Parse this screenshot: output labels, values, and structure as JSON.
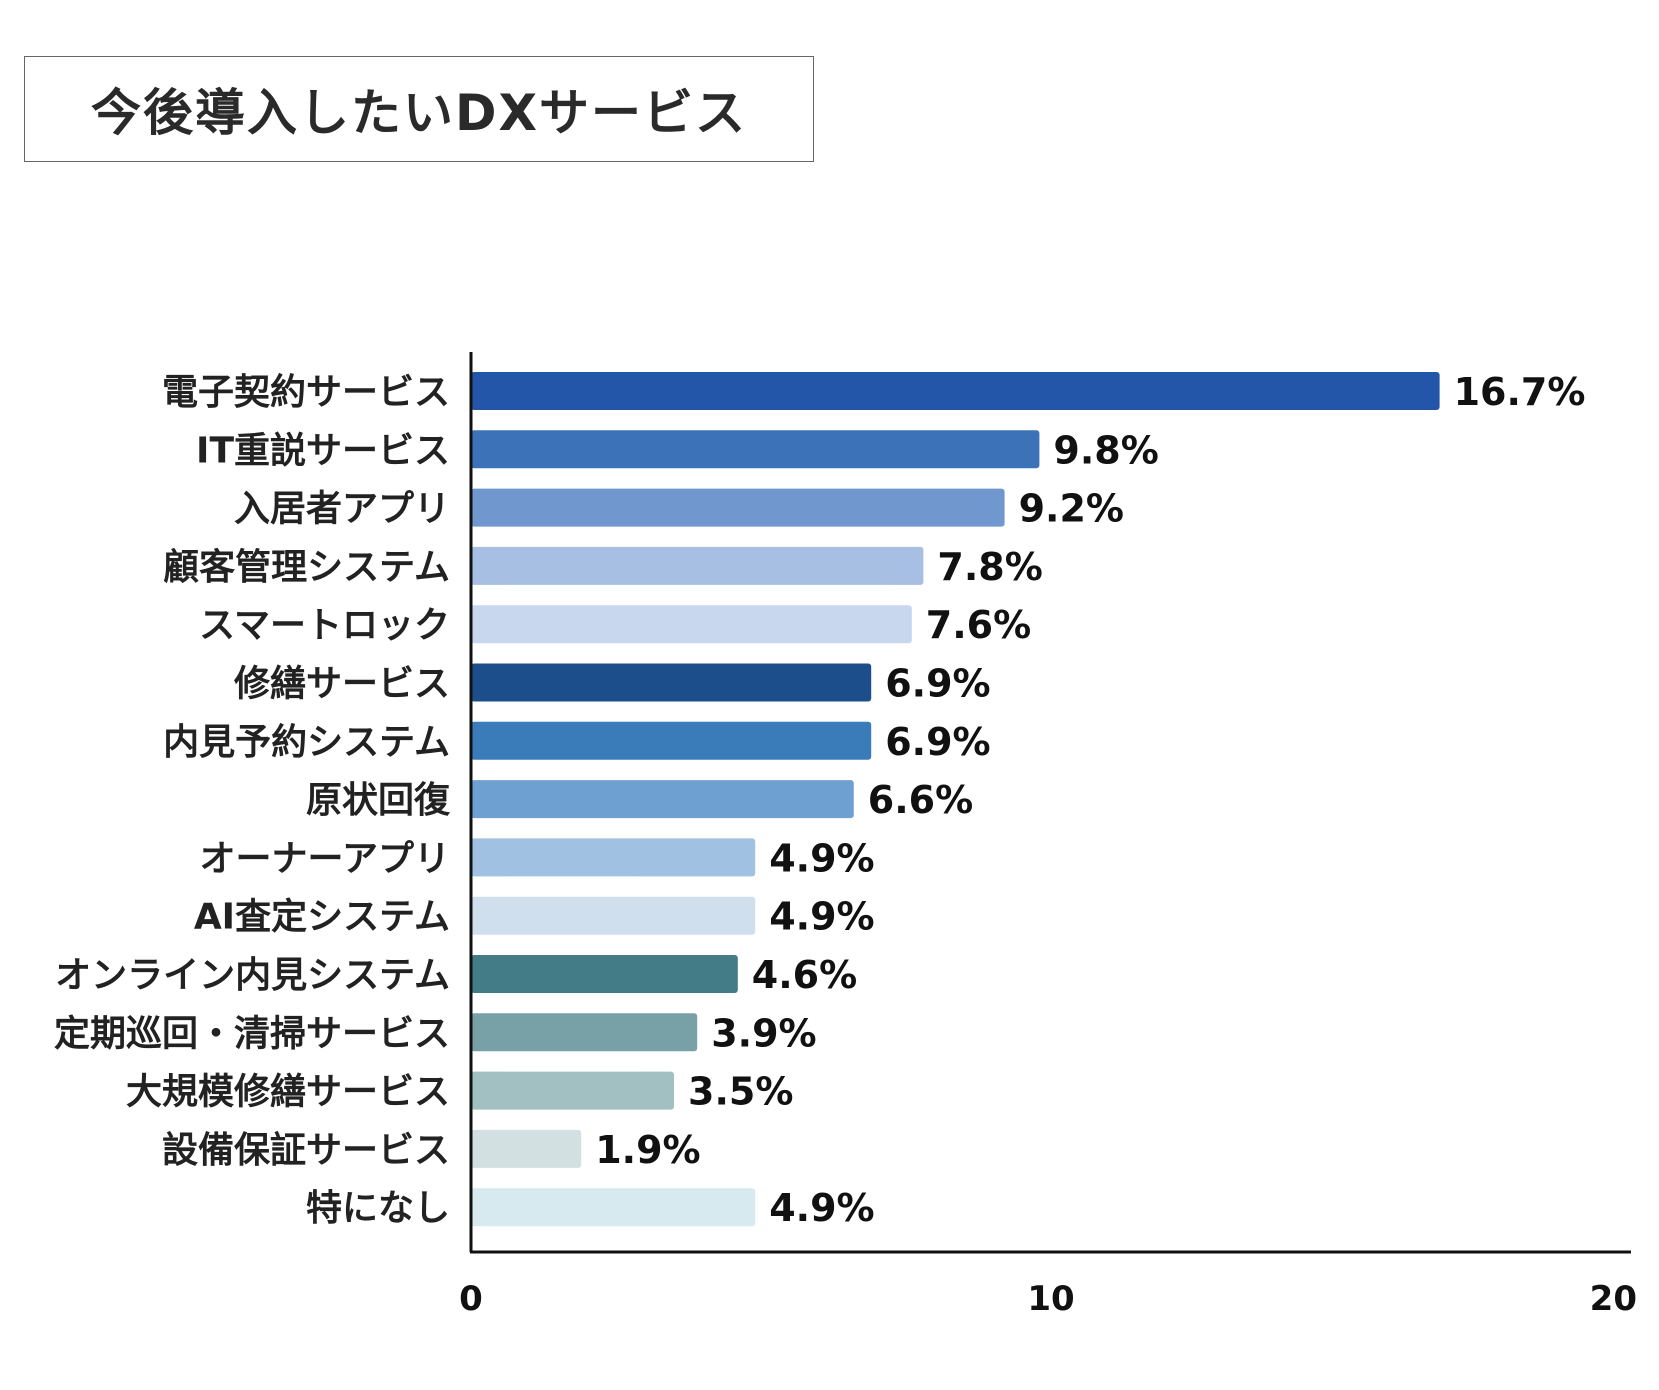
{
  "title": "今後導入したいDXサービス",
  "chart_data": {
    "type": "bar",
    "orientation": "horizontal",
    "title": "今後導入したいDXサービス",
    "xlabel": "",
    "ylabel": "",
    "xlim": [
      0,
      20
    ],
    "xticks": [
      0,
      10,
      20
    ],
    "grid": false,
    "categories": [
      "電子契約サービス",
      "IT重説サービス",
      "入居者アプリ",
      "顧客管理システム",
      "スマートロック",
      "修繕サービス",
      "内見予約システム",
      "原状回復",
      "オーナーアプリ",
      "AI査定システム",
      "オンライン内見システム",
      "定期巡回・清掃サービス",
      "大規模修繕サービス",
      "設備保証サービス",
      "特になし"
    ],
    "values": [
      16.7,
      9.8,
      9.2,
      7.8,
      7.6,
      6.9,
      6.9,
      6.6,
      4.9,
      4.9,
      4.6,
      3.9,
      3.5,
      1.9,
      4.9
    ],
    "value_labels": [
      "16.7%",
      "9.8%",
      "9.2%",
      "7.8%",
      "7.6%",
      "6.9%",
      "6.9%",
      "6.6%",
      "4.9%",
      "4.9%",
      "4.6%",
      "3.9%",
      "3.5%",
      "1.9%",
      "4.9%"
    ],
    "colors": [
      "#2356a8",
      "#3c72b8",
      "#7098cf",
      "#a6bfe3",
      "#c8d6ee",
      "#1b4e8a",
      "#3a7bba",
      "#6fa0d2",
      "#a0c1e2",
      "#cfdfee",
      "#437c86",
      "#77a0a7",
      "#a2bfc2",
      "#d3e0e1",
      "#d6eaf0"
    ]
  }
}
